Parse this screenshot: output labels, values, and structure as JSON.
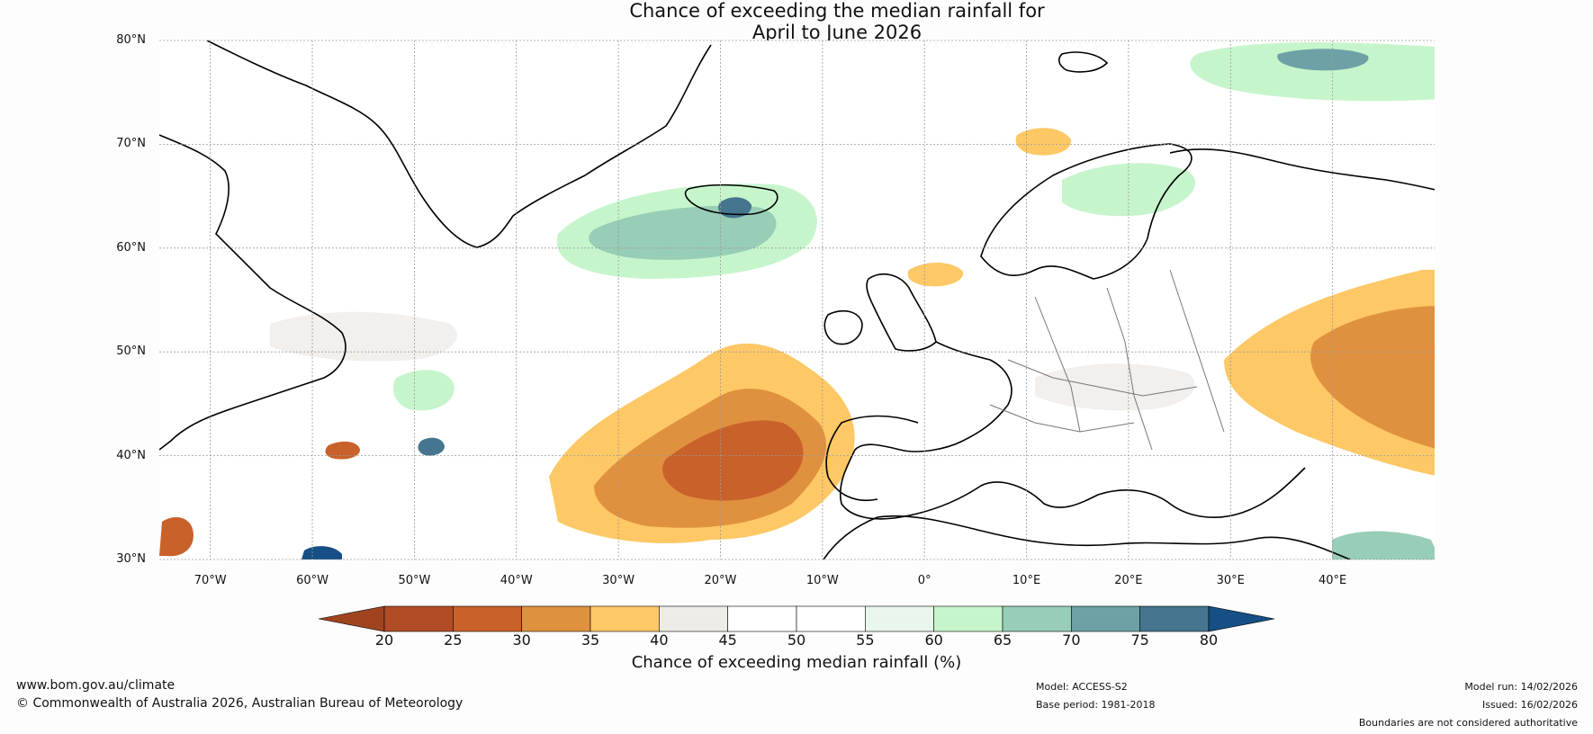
{
  "title": {
    "line1": "Chance of exceeding the median rainfall for",
    "line2": "April to June 2026"
  },
  "map": {
    "latitudes": [
      "80°N",
      "70°N",
      "60°N",
      "50°N",
      "40°N",
      "30°N"
    ],
    "longitudes": [
      "70°W",
      "60°W",
      "50°W",
      "40°W",
      "30°W",
      "20°W",
      "10°W",
      "0°",
      "10°E",
      "20°E",
      "30°E",
      "40°E"
    ],
    "lat_range": [
      30,
      80
    ],
    "lon_range": [
      -75,
      50
    ],
    "ocean_color": "#ffffff",
    "coast_color": "#000000",
    "border_color": "#777777"
  },
  "colorbar": {
    "ticks": [
      "20",
      "25",
      "30",
      "35",
      "40",
      "45",
      "50",
      "55",
      "60",
      "65",
      "70",
      "75",
      "80"
    ],
    "colors": [
      "#a0441f",
      "#b24c26",
      "#c9622a",
      "#e0913f",
      "#fdc865",
      "#efebe7",
      "#ffffff",
      "#ffffff",
      "#e9f6ec",
      "#c6f5cc",
      "#98cdb7",
      "#6da1a6",
      "#45758f",
      "#154f85"
    ],
    "title": "Chance of exceeding median rainfall (%)"
  },
  "footer": {
    "website": "www.bom.gov.au/climate",
    "copyright": "© Commonwealth of Australia 2026, Australian Bureau of Meteorology",
    "model": "Model: ACCESS-S2",
    "base_period": "Base period: 1981-2018",
    "model_run": "Model run: 14/02/2026",
    "issued": "Issued: 16/02/2026",
    "disclaimer": "Boundaries are not considered authoritative"
  }
}
